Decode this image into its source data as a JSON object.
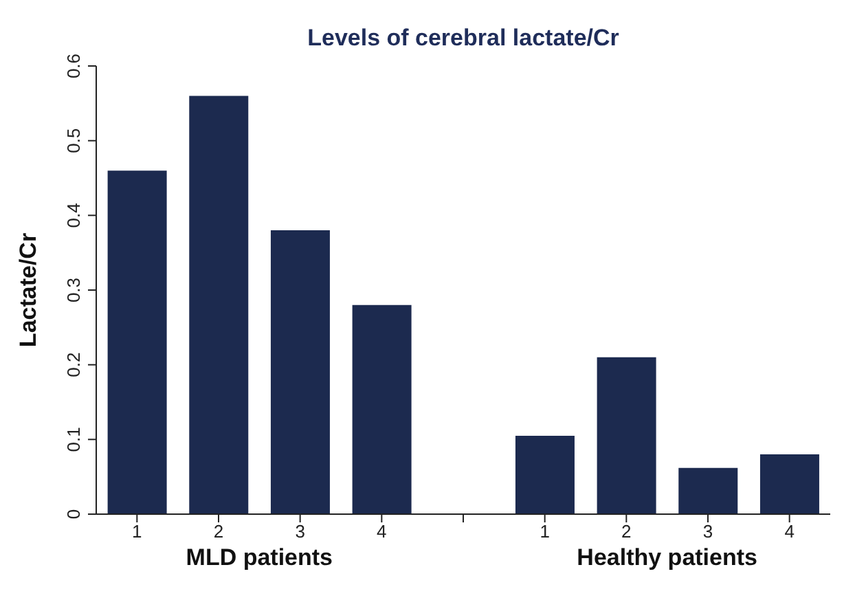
{
  "chart_data": {
    "type": "bar",
    "title": "Levels of cerebral lactate/Cr",
    "ylabel": "Lactate/Cr",
    "categories": [
      "1",
      "2",
      "3",
      "4",
      null,
      "1",
      "2",
      "3",
      "4"
    ],
    "values": [
      0.46,
      0.56,
      0.38,
      0.28,
      null,
      0.105,
      0.21,
      0.062,
      0.08
    ],
    "color": "#1c2a4f",
    "ylim": [
      0,
      0.6
    ],
    "yticks": [
      0,
      0.1,
      0.2,
      0.3,
      0.4,
      0.5,
      0.6
    ],
    "grid": false,
    "annotations": [
      "MLD patients",
      "Healthy patients"
    ]
  }
}
